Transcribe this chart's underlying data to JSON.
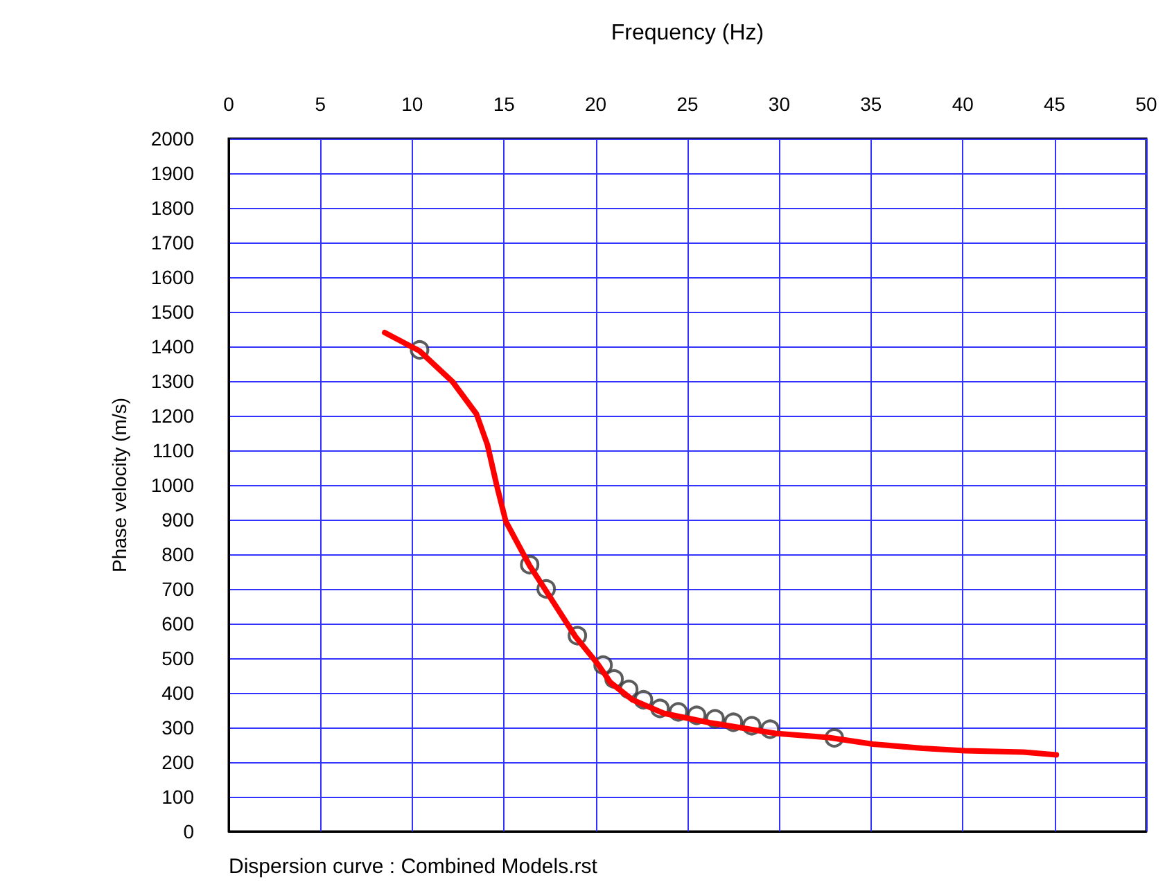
{
  "chart_data": {
    "type": "line",
    "xlabel": "Frequency (Hz)",
    "ylabel": "Phase velocity (m/s)",
    "annotations": [
      "Dispersion curve : Combined Models.rst"
    ],
    "xlim": [
      0,
      50
    ],
    "xticks": [
      0,
      5,
      10,
      15,
      20,
      25,
      30,
      35,
      40,
      45,
      50
    ],
    "ylim": [
      0,
      2000
    ],
    "yticks": [
      0,
      100,
      200,
      300,
      400,
      500,
      600,
      700,
      800,
      900,
      1000,
      1100,
      1200,
      1300,
      1400,
      1500,
      1600,
      1700,
      1800,
      1900,
      2000
    ],
    "grid": true,
    "series": [
      {
        "type": "scatter",
        "marker": "circle",
        "color": "#333333",
        "x": [
          10.4,
          16.4,
          17.3,
          19.0,
          20.4,
          21.0,
          21.8,
          22.6,
          23.5,
          24.5,
          25.5,
          26.5,
          27.5,
          28.5,
          29.5,
          33.0
        ],
        "values": [
          1390,
          770,
          700,
          565,
          480,
          440,
          410,
          380,
          355,
          345,
          335,
          325,
          315,
          305,
          295,
          270
        ]
      },
      {
        "marker": "none",
        "line_style": "solid",
        "color": "#ff0000",
        "x": [
          8.5,
          10.4,
          12.2,
          13.5,
          14.1,
          14.6,
          15.1,
          16.4,
          17.2,
          18.9,
          20.1,
          20.8,
          22.0,
          23.7,
          26.2,
          29.8,
          32.7,
          35.1,
          37.8,
          40.1,
          43.3,
          45.1
        ],
        "values": [
          1440,
          1387,
          1298,
          1205,
          1116,
          1000,
          895,
          767,
          702,
          562,
          484,
          430,
          380,
          341,
          314,
          283,
          271,
          252,
          240,
          233,
          229,
          221
        ]
      }
    ]
  }
}
